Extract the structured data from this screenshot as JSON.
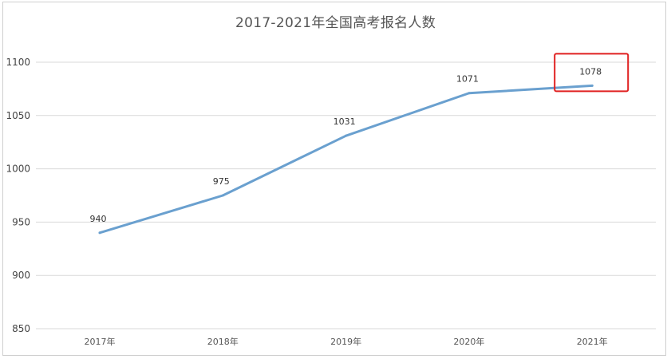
{
  "chart_data": {
    "type": "line",
    "title": "2017-2021年全国高考报名人数",
    "xlabel": "",
    "ylabel": "",
    "categories": [
      "2017年",
      "2018年",
      "2019年",
      "2020年",
      "2021年"
    ],
    "values": [
      940,
      975,
      1031,
      1071,
      1078
    ],
    "data_labels": [
      "940",
      "975",
      "1031",
      "1071",
      "1078"
    ],
    "y_ticks": [
      850,
      900,
      950,
      1000,
      1050,
      1100
    ],
    "ylim": [
      850,
      1100
    ],
    "grid": true,
    "legend": "none",
    "line_color": "#6aa0cf",
    "highlight": {
      "category": "2021年",
      "color": "#e02020"
    }
  }
}
